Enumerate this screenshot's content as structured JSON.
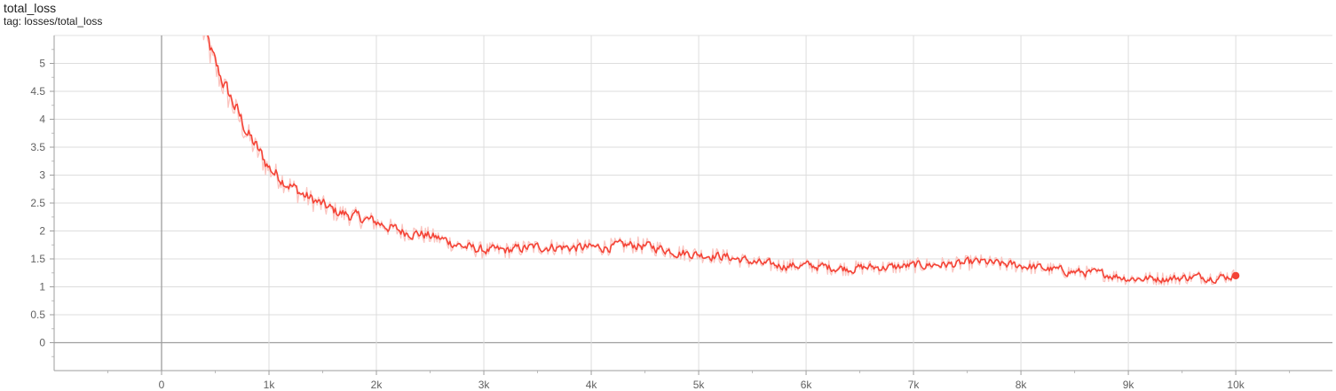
{
  "card": {
    "title": "total_loss",
    "tag": "tag: losses/total_loss"
  },
  "chart_data": {
    "type": "line",
    "title": "total_loss",
    "subtitle": "tag: losses/total_loss",
    "xlabel": "",
    "ylabel": "",
    "xlim": [
      -1000,
      10900
    ],
    "ylim": [
      -0.5,
      5.5
    ],
    "grid": true,
    "x_ticks": [
      0,
      1000,
      2000,
      3000,
      4000,
      5000,
      6000,
      7000,
      8000,
      9000,
      10000
    ],
    "x_tick_labels": [
      "0",
      "1k",
      "2k",
      "3k",
      "4k",
      "5k",
      "6k",
      "7k",
      "8k",
      "9k",
      "10k"
    ],
    "y_ticks": [
      0,
      0.5,
      1,
      1.5,
      2,
      2.5,
      3,
      3.5,
      4,
      4.5,
      5
    ],
    "y_tick_labels": [
      "0",
      "0.5",
      "1",
      "1.5",
      "2",
      "2.5",
      "3",
      "3.5",
      "4",
      "4.5",
      "5"
    ],
    "series": [
      {
        "color": "#f44336",
        "raw_color": "#fbc4bf",
        "x": [
          380,
          500,
          600,
          700,
          800,
          900,
          1000,
          1100,
          1200,
          1300,
          1400,
          1500,
          1600,
          1700,
          1800,
          1900,
          2000,
          2200,
          2400,
          2600,
          2800,
          3000,
          3200,
          3400,
          3600,
          3800,
          4000,
          4200,
          4400,
          4600,
          4800,
          5000,
          5200,
          5400,
          5600,
          5800,
          6000,
          6200,
          6400,
          6600,
          6800,
          7000,
          7200,
          7400,
          7600,
          7800,
          8000,
          8200,
          8400,
          8600,
          8800,
          9000,
          9200,
          9400,
          9600,
          9800,
          10000
        ],
        "y": [
          5.6,
          4.9,
          4.5,
          4.1,
          3.7,
          3.4,
          3.1,
          2.95,
          2.8,
          2.65,
          2.55,
          2.45,
          2.35,
          2.3,
          2.25,
          2.2,
          2.15,
          2.0,
          1.95,
          1.85,
          1.72,
          1.65,
          1.65,
          1.7,
          1.72,
          1.7,
          1.7,
          1.72,
          1.75,
          1.7,
          1.62,
          1.58,
          1.55,
          1.48,
          1.4,
          1.38,
          1.38,
          1.35,
          1.33,
          1.35,
          1.35,
          1.38,
          1.4,
          1.4,
          1.45,
          1.4,
          1.38,
          1.33,
          1.28,
          1.25,
          1.22,
          1.15,
          1.15,
          1.15,
          1.18,
          1.17,
          1.2
        ]
      }
    ]
  }
}
